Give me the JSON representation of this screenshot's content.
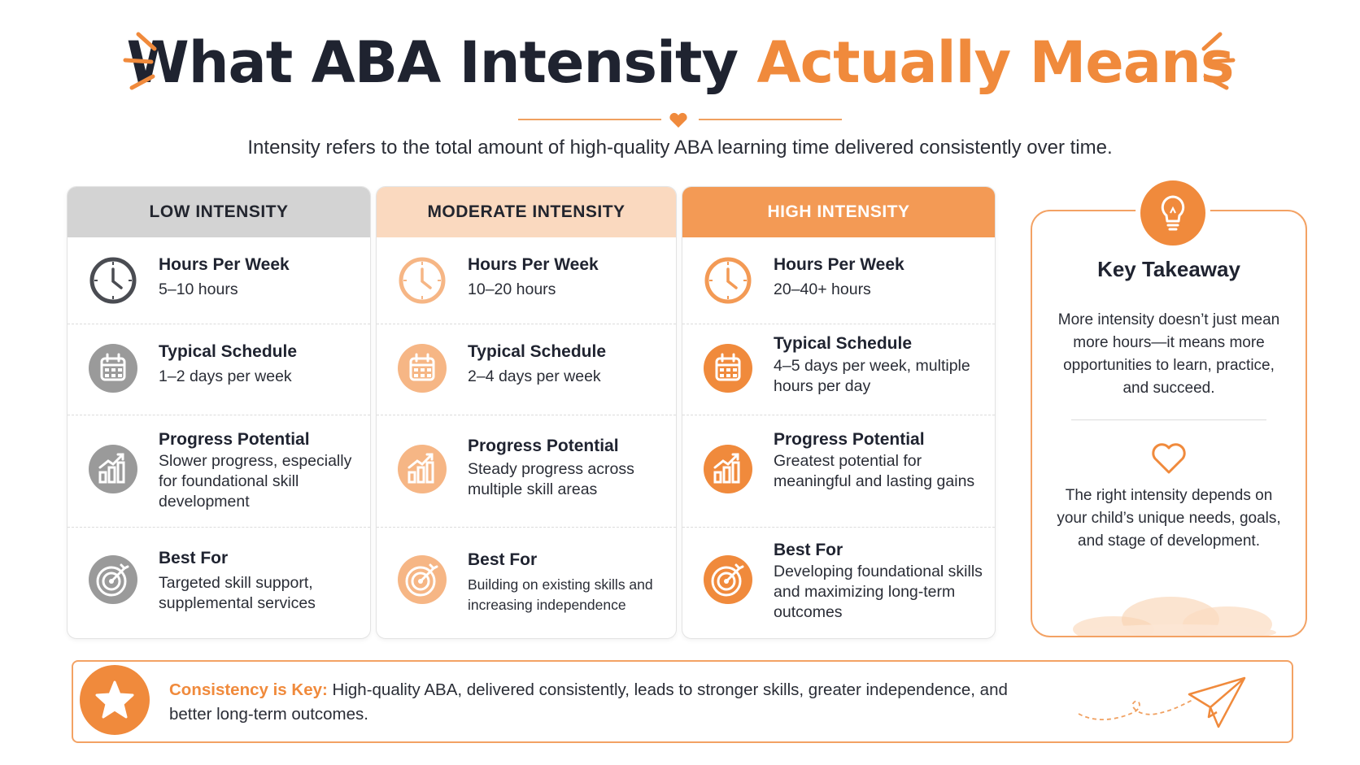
{
  "header": {
    "title_part1": "What ABA Intensity",
    "title_part2": "Actually Means",
    "subtitle": "Intensity refers to the total amount of high-quality ABA learning time delivered consistently over time."
  },
  "colors": {
    "accent": "#f08a3c",
    "low_header": "#d3d3d3",
    "moderate_header": "#fad9bf",
    "high_header": "#f39a55",
    "low_icon": "#9a9a9a",
    "moderate_icon": "#f6b685",
    "high_icon": "#f08a3c"
  },
  "columns": [
    {
      "header": "LOW INTENSITY",
      "hours_label": "Hours Per Week",
      "hours_value": "5–10 hours",
      "schedule_label": "Typical Schedule",
      "schedule_value": "1–2 days per week",
      "progress_label": "Progress Potential",
      "progress_value": "Slower progress, especially for foundational skill development",
      "best_label": "Best For",
      "best_value": "Targeted skill support, supplemental services"
    },
    {
      "header": "MODERATE INTENSITY",
      "hours_label": "Hours Per Week",
      "hours_value": "10–20 hours",
      "schedule_label": "Typical Schedule",
      "schedule_value": "2–4 days per week",
      "progress_label": "Progress Potential",
      "progress_value": "Steady progress across multiple skill areas",
      "best_label": "Best For",
      "best_value": "Building on existing skills and increasing independence"
    },
    {
      "header": "HIGH INTENSITY",
      "hours_label": "Hours Per Week",
      "hours_value": "20–40+ hours",
      "schedule_label": "Typical Schedule",
      "schedule_value": "4–5 days per week, multiple hours per day",
      "progress_label": "Progress Potential",
      "progress_value": "Greatest potential for meaningful and lasting gains",
      "best_label": "Best For",
      "best_value": "Developing foundational skills and maximizing long-term outcomes"
    }
  ],
  "icons": {
    "hours": "clock-icon",
    "schedule": "calendar-icon",
    "progress": "bar-chart-growth-icon",
    "best": "target-icon",
    "takeaway": "lightbulb-icon",
    "heart": "heart-icon",
    "banner": "star-icon",
    "decor": "paper-plane-icon"
  },
  "takeaway": {
    "title": "Key Takeaway",
    "text1": "More intensity doesn’t just mean more hours—it means more opportunities to learn, practice, and succeed.",
    "text2": "The right intensity depends on your child’s unique needs, goals, and stage of development."
  },
  "banner": {
    "key_label": "Consistency is Key:",
    "text": "High-quality ABA, delivered consistently, leads to stronger skills, greater independence, and better long-term outcomes."
  }
}
